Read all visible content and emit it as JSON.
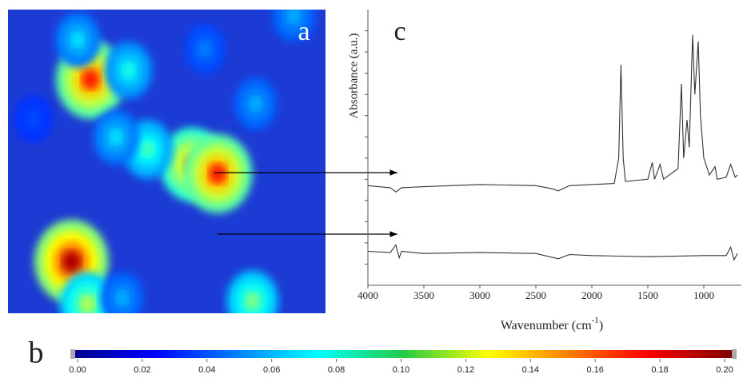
{
  "chart_data": [
    {
      "type": "heatmap",
      "panel_label": "a",
      "x": [
        0.26,
        0.58,
        0.66,
        0.2,
        0.25,
        0.77,
        0.38,
        0.44,
        0.22,
        0.78,
        0.34,
        0.36,
        0.9,
        0.08,
        0.62
      ],
      "y": [
        0.23,
        0.51,
        0.54,
        0.83,
        0.97,
        0.96,
        0.2,
        0.46,
        0.1,
        0.31,
        0.42,
        0.95,
        0.02,
        0.36,
        0.13
      ],
      "values": [
        0.17,
        0.15,
        0.17,
        0.19,
        0.11,
        0.1,
        0.08,
        0.09,
        0.07,
        0.06,
        0.07,
        0.06,
        0.06,
        0.04,
        0.05
      ]
    },
    {
      "type": "line",
      "panel_label": "c",
      "y_label": "Absorbance (a.u.)",
      "x_label": "Wavenumber (cm",
      "x_label_superscript": "-1",
      "x_label_suffix": ")",
      "xlim": [
        4000,
        700
      ],
      "xticks": [
        4000,
        3500,
        3000,
        2500,
        2000,
        1500,
        1000
      ],
      "ylim": [
        0,
        13
      ],
      "yticks": [
        1,
        2,
        3,
        4,
        5,
        6,
        7,
        8,
        9,
        10,
        11,
        12
      ],
      "ytick_labels": false,
      "series": [
        {
          "color": "#333333",
          "x": [
            4000,
            3800,
            3750,
            3700,
            3500,
            3000,
            2500,
            2350,
            2300,
            2200,
            2000,
            1800,
            1760,
            1740,
            1720,
            1700,
            1500,
            1460,
            1440,
            1390,
            1360,
            1230,
            1200,
            1180,
            1150,
            1130,
            1100,
            1080,
            1050,
            1030,
            1000,
            950,
            900,
            880,
            800,
            760,
            720,
            700
          ],
          "values": [
            4.7,
            4.6,
            4.4,
            4.6,
            4.65,
            4.75,
            4.7,
            4.55,
            4.45,
            4.7,
            4.75,
            4.8,
            6,
            10.4,
            6,
            4.9,
            5,
            5.8,
            5,
            5.7,
            5,
            5.5,
            9.5,
            6,
            7.8,
            6.5,
            11.8,
            9,
            11.5,
            8,
            6,
            5.2,
            5.6,
            5,
            5.1,
            5.7,
            5.1,
            5.2
          ]
        },
        {
          "color": "#333333",
          "x": [
            4000,
            3800,
            3750,
            3720,
            3700,
            3500,
            3000,
            2500,
            2300,
            2200,
            2000,
            1500,
            1000,
            800,
            760,
            730,
            700
          ],
          "values": [
            1.6,
            1.55,
            1.9,
            1.3,
            1.6,
            1.5,
            1.55,
            1.5,
            1.25,
            1.45,
            1.4,
            1.35,
            1.4,
            1.4,
            1.8,
            1.2,
            1.5
          ]
        }
      ]
    },
    {
      "type": "colorbar",
      "panel_label": "b",
      "xlim": [
        0,
        0.2
      ],
      "xticks": [
        {
          "value": 0,
          "label": "0.00"
        },
        {
          "value": 0.02,
          "label": "0.02"
        },
        {
          "value": 0.04,
          "label": "0.04"
        },
        {
          "value": 0.06,
          "label": "0.06"
        },
        {
          "value": 0.08,
          "label": "0.08"
        },
        {
          "value": 0.1,
          "label": "0.10"
        },
        {
          "value": 0.12,
          "label": "0.12"
        },
        {
          "value": 0.14,
          "label": "0.14"
        },
        {
          "value": 0.16,
          "label": "0.16"
        },
        {
          "value": 0.18,
          "label": "0.18"
        },
        {
          "value": 0.2,
          "label": "0.20"
        }
      ]
    }
  ]
}
